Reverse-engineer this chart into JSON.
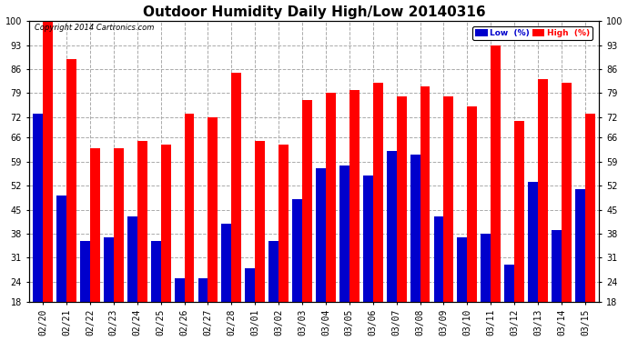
{
  "title": "Outdoor Humidity Daily High/Low 20140316",
  "copyright": "Copyright 2014 Cartronics.com",
  "dates": [
    "02/20",
    "02/21",
    "02/22",
    "02/23",
    "02/24",
    "02/25",
    "02/26",
    "02/27",
    "02/28",
    "03/01",
    "03/02",
    "03/03",
    "03/04",
    "03/05",
    "03/06",
    "03/07",
    "03/08",
    "03/09",
    "03/10",
    "03/11",
    "03/12",
    "03/13",
    "03/14",
    "03/15"
  ],
  "high": [
    100,
    89,
    63,
    63,
    65,
    64,
    73,
    72,
    85,
    65,
    64,
    77,
    79,
    80,
    82,
    78,
    81,
    78,
    75,
    93,
    71,
    83,
    82,
    73
  ],
  "low": [
    73,
    49,
    36,
    37,
    43,
    36,
    25,
    25,
    41,
    28,
    36,
    48,
    57,
    58,
    55,
    62,
    61,
    43,
    37,
    38,
    29,
    53,
    39,
    51
  ],
  "high_color": "#ff0000",
  "low_color": "#0000cc",
  "bg_color": "#ffffff",
  "plot_bg_color": "#ffffff",
  "grid_color": "#aaaaaa",
  "ylim_min": 18,
  "ylim_max": 100,
  "yticks": [
    18,
    24,
    31,
    38,
    45,
    52,
    59,
    66,
    72,
    79,
    86,
    93,
    100
  ],
  "bar_width": 0.42,
  "title_fontsize": 11,
  "tick_fontsize": 7,
  "legend_low_label": "Low  (%)",
  "legend_high_label": "High  (%)"
}
